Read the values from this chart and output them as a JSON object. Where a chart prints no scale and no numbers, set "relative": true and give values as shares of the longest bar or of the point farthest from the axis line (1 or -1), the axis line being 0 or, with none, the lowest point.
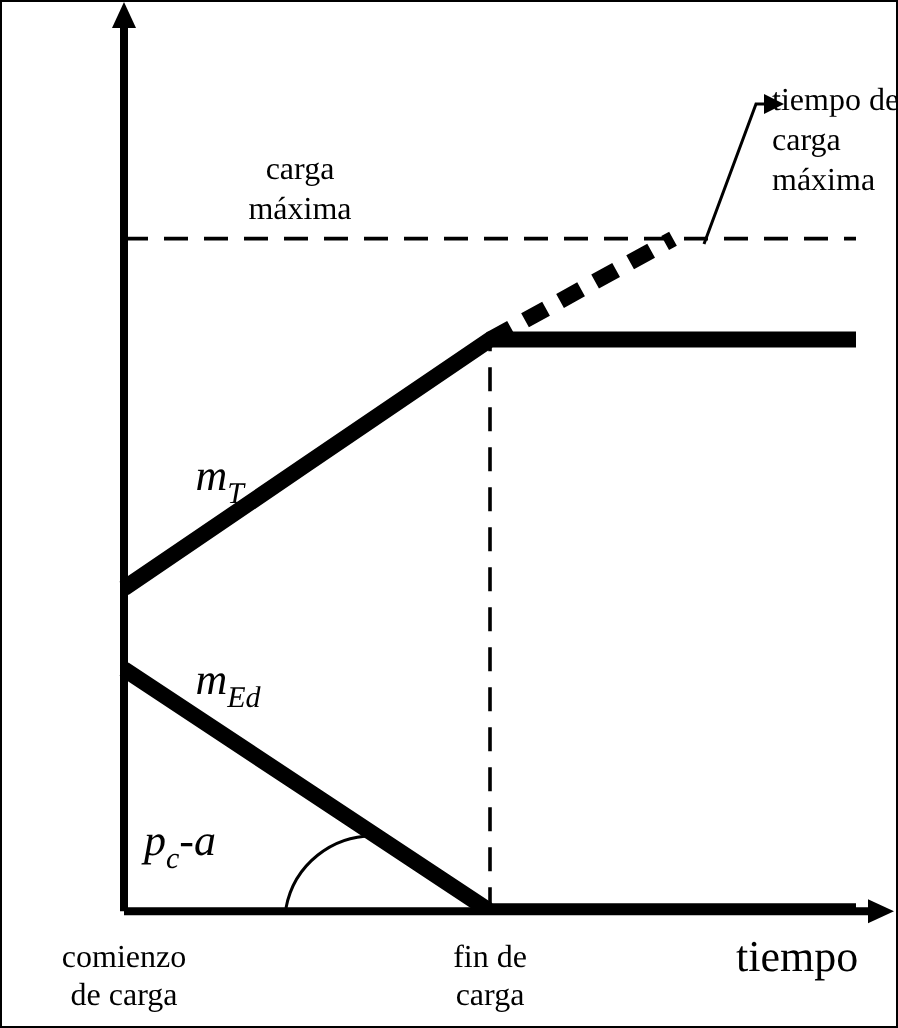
{
  "chart_data": {
    "type": "line",
    "relative": true,
    "xlabel": "tiempo",
    "categories": [
      "comienzo de carga",
      null,
      "fin de carga",
      null,
      null
    ],
    "series": [
      {
        "name": "m$_{T}$",
        "color": "#000000",
        "values": [
          0.48,
          0.665,
          0.85,
          0.85,
          0.85
        ]
      },
      {
        "name": "m$_{Ed}$",
        "color": "#000000",
        "values": [
          0.36,
          0.18,
          0,
          0,
          0
        ]
      },
      {
        "color": "#000000",
        "line_style": "dashed",
        "values": [
          null,
          null,
          0.85,
          1,
          null
        ]
      }
    ],
    "ref_lines": [
      {
        "axis": "y",
        "value": 1,
        "label": "carga máxima",
        "line_style": "dashed"
      },
      {
        "axis": "x",
        "value": "fin de carga",
        "line_style": "dashed"
      }
    ],
    "annotations": [
      "tiempo de carga máxima",
      "p$_{c}$-a"
    ],
    "legend": false,
    "grid": false,
    "marker": "none",
    "line_style": "solid"
  }
}
